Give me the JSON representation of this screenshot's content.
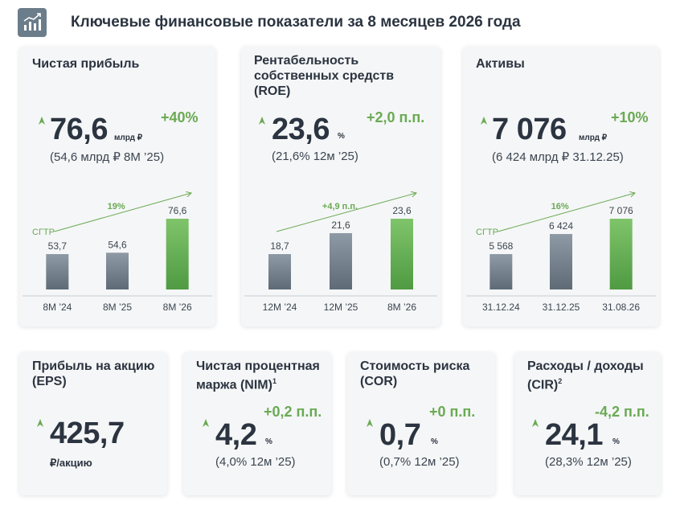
{
  "page": {
    "title": "Ключевые финансовые показатели за 8 месяцев 2026 года",
    "logo_icon": "growth-chart-icon"
  },
  "colors": {
    "accent_green": "#6aaa54",
    "bar_grey_top": "#8e9aa5",
    "bar_grey_bottom": "#5e6b77",
    "bar_green_top": "#7fc46a",
    "bar_green_bottom": "#4f9a42",
    "text_dark": "#2b3440",
    "card_bg": "#f5f6f7"
  },
  "cards": {
    "net_profit": {
      "name": "Чистая прибыль",
      "value": "76,6",
      "unit": "млрд ₽",
      "change": "+40%",
      "prev": "(54,6 млрд ₽  8М ’25)"
    },
    "roe": {
      "name": "Рентабельность собственных средств (ROE)",
      "value": "23,6",
      "unit": "%",
      "change": "+2,0 п.п.",
      "prev": "(21,6%  12м ’25)"
    },
    "assets": {
      "name": "Активы",
      "value": "7 076",
      "unit": "млрд ₽",
      "change": "+10%",
      "prev": "(6 424 млрд ₽  31.12.25)"
    },
    "eps": {
      "name": "Прибыль на акцию (EPS)",
      "value": "425,7",
      "unit": "₽/акцию"
    },
    "nim": {
      "name": "Чистая процентная маржа (NIM)",
      "sup": "1",
      "value": "4,2",
      "unit": "%",
      "change": "+0,2 п.п.",
      "prev": "(4,0%  12м ’25)"
    },
    "cor": {
      "name": "Стоимость риска (COR)",
      "value": "0,7",
      "unit": "%",
      "change": "+0 п.п.",
      "prev": "(0,7%  12м ’25)"
    },
    "cir": {
      "name": "Расходы / доходы (CIR)",
      "sup": "2",
      "value": "24,1",
      "unit": "%",
      "change": "-4,2 п.п.",
      "prev": "(28,3%  12м ’25)"
    }
  },
  "chart_data": [
    {
      "type": "bar",
      "categories": [
        "8М ’24",
        "8М ’25",
        "8М ’26"
      ],
      "values": [
        53.7,
        54.6,
        76.6
      ],
      "labels": [
        "53,7",
        "54,6",
        "76,6"
      ],
      "annotation_label": "СГТР",
      "annotation_value": "19%",
      "highlight_last": true
    },
    {
      "type": "bar",
      "categories": [
        "12М ’24",
        "12М ’25",
        "8М ’26"
      ],
      "values": [
        18.7,
        21.6,
        23.6
      ],
      "labels": [
        "18,7",
        "21,6",
        "23,6"
      ],
      "annotation_label": "",
      "annotation_value": "+4,9 п.п.",
      "highlight_last": true
    },
    {
      "type": "bar",
      "categories": [
        "31.12.24",
        "31.12.25",
        "31.08.26"
      ],
      "values": [
        5568,
        6424,
        7076
      ],
      "labels": [
        "5 568",
        "6 424",
        "7 076"
      ],
      "annotation_label": "СГТР",
      "annotation_value": "16%",
      "highlight_last": true
    }
  ]
}
